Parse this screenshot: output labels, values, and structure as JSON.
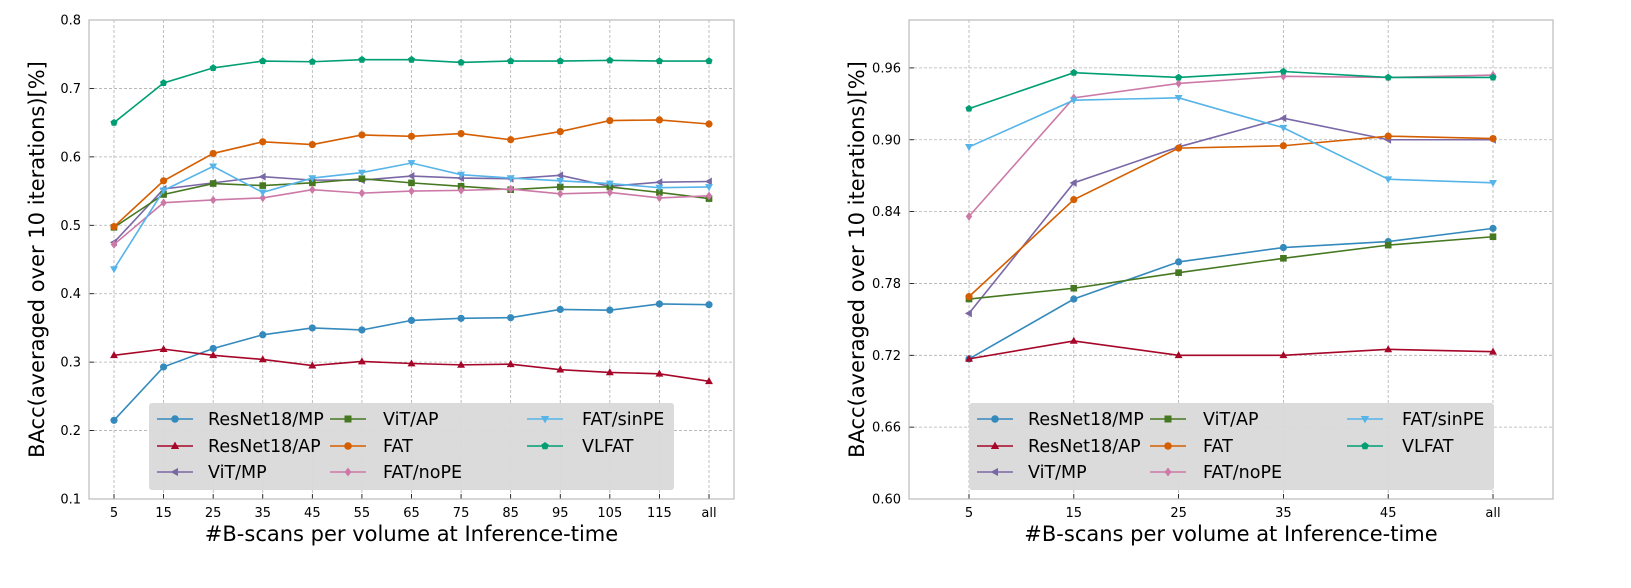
{
  "chart_data": [
    {
      "type": "line",
      "title": "",
      "xlabel": "#B-scans per volume at Inference-time",
      "ylabel": "BAcc(averaged over 10 iterations)[%]",
      "categories": [
        "5",
        "15",
        "25",
        "35",
        "45",
        "55",
        "65",
        "75",
        "85",
        "95",
        "105",
        "115",
        "all"
      ],
      "ylim": [
        0.1,
        0.8
      ],
      "yticks": [
        "0.1",
        "0.2",
        "0.3",
        "0.4",
        "0.5",
        "0.6",
        "0.7",
        "0.8"
      ],
      "grid": true,
      "legend_position": "lower-center",
      "series": [
        {
          "name": "ResNet18/MP",
          "color": "#348abd",
          "marker": "circle",
          "values": [
            0.215,
            0.293,
            0.32,
            0.34,
            0.35,
            0.347,
            0.361,
            0.364,
            0.365,
            0.377,
            0.376,
            0.385,
            0.384
          ]
        },
        {
          "name": "ResNet18/AP",
          "color": "#a60628",
          "marker": "triangle-up",
          "values": [
            0.31,
            0.319,
            0.31,
            0.304,
            0.295,
            0.301,
            0.298,
            0.296,
            0.297,
            0.289,
            0.285,
            0.283,
            0.272
          ]
        },
        {
          "name": "ViT/MP",
          "color": "#7a68a6",
          "marker": "triangle-left",
          "values": [
            0.475,
            0.553,
            0.562,
            0.571,
            0.566,
            0.566,
            0.572,
            0.569,
            0.568,
            0.573,
            0.557,
            0.563,
            0.564
          ]
        },
        {
          "name": "ViT/AP",
          "color": "#467821",
          "marker": "square",
          "values": [
            0.497,
            0.545,
            0.561,
            0.558,
            0.562,
            0.568,
            0.562,
            0.557,
            0.552,
            0.556,
            0.556,
            0.548,
            0.539
          ]
        },
        {
          "name": "FAT",
          "color": "#d55e00",
          "marker": "circle",
          "values": [
            0.498,
            0.565,
            0.605,
            0.622,
            0.618,
            0.632,
            0.63,
            0.634,
            0.625,
            0.637,
            0.653,
            0.654,
            0.648
          ]
        },
        {
          "name": "FAT/noPE",
          "color": "#cc79a7",
          "marker": "diamond",
          "values": [
            0.472,
            0.533,
            0.537,
            0.54,
            0.552,
            0.547,
            0.55,
            0.551,
            0.553,
            0.546,
            0.548,
            0.54,
            0.543
          ]
        },
        {
          "name": "FAT/sinPE",
          "color": "#56b4e9",
          "marker": "triangle-down",
          "values": [
            0.436,
            0.551,
            0.586,
            0.548,
            0.569,
            0.577,
            0.591,
            0.574,
            0.569,
            0.565,
            0.561,
            0.555,
            0.556
          ]
        },
        {
          "name": "VLFAT",
          "color": "#009e73",
          "marker": "pentagon",
          "values": [
            0.65,
            0.708,
            0.73,
            0.74,
            0.739,
            0.742,
            0.742,
            0.738,
            0.74,
            0.74,
            0.741,
            0.74,
            0.74
          ]
        }
      ]
    },
    {
      "type": "line",
      "title": "",
      "xlabel": "#B-scans per volume at Inference-time",
      "ylabel": "BAcc(averaged over 10 iterations)[%]",
      "categories": [
        "5",
        "15",
        "25",
        "35",
        "45",
        "all"
      ],
      "ylim": [
        0.6,
        1.0
      ],
      "yticks": [
        "0.60",
        "0.66",
        "0.72",
        "0.78",
        "0.84",
        "0.90",
        "0.96"
      ],
      "grid": true,
      "legend_position": "lower-center",
      "series": [
        {
          "name": "ResNet18/MP",
          "color": "#348abd",
          "marker": "circle",
          "values": [
            0.717,
            0.767,
            0.798,
            0.81,
            0.815,
            0.826
          ]
        },
        {
          "name": "ResNet18/AP",
          "color": "#a60628",
          "marker": "triangle-up",
          "values": [
            0.717,
            0.732,
            0.72,
            0.72,
            0.725,
            0.723
          ]
        },
        {
          "name": "ViT/MP",
          "color": "#7a68a6",
          "marker": "triangle-left",
          "values": [
            0.755,
            0.864,
            0.894,
            0.918,
            0.9,
            0.9
          ]
        },
        {
          "name": "ViT/AP",
          "color": "#467821",
          "marker": "square",
          "values": [
            0.767,
            0.776,
            0.789,
            0.801,
            0.812,
            0.819
          ]
        },
        {
          "name": "FAT",
          "color": "#d55e00",
          "marker": "circle",
          "values": [
            0.769,
            0.85,
            0.893,
            0.895,
            0.903,
            0.901
          ]
        },
        {
          "name": "FAT/noPE",
          "color": "#cc79a7",
          "marker": "diamond",
          "values": [
            0.836,
            0.935,
            0.947,
            0.953,
            0.952,
            0.954
          ]
        },
        {
          "name": "FAT/sinPE",
          "color": "#56b4e9",
          "marker": "triangle-down",
          "values": [
            0.894,
            0.933,
            0.935,
            0.91,
            0.867,
            0.864
          ]
        },
        {
          "name": "VLFAT",
          "color": "#009e73",
          "marker": "pentagon",
          "values": [
            0.926,
            0.956,
            0.952,
            0.957,
            0.952,
            0.952
          ]
        }
      ]
    }
  ]
}
